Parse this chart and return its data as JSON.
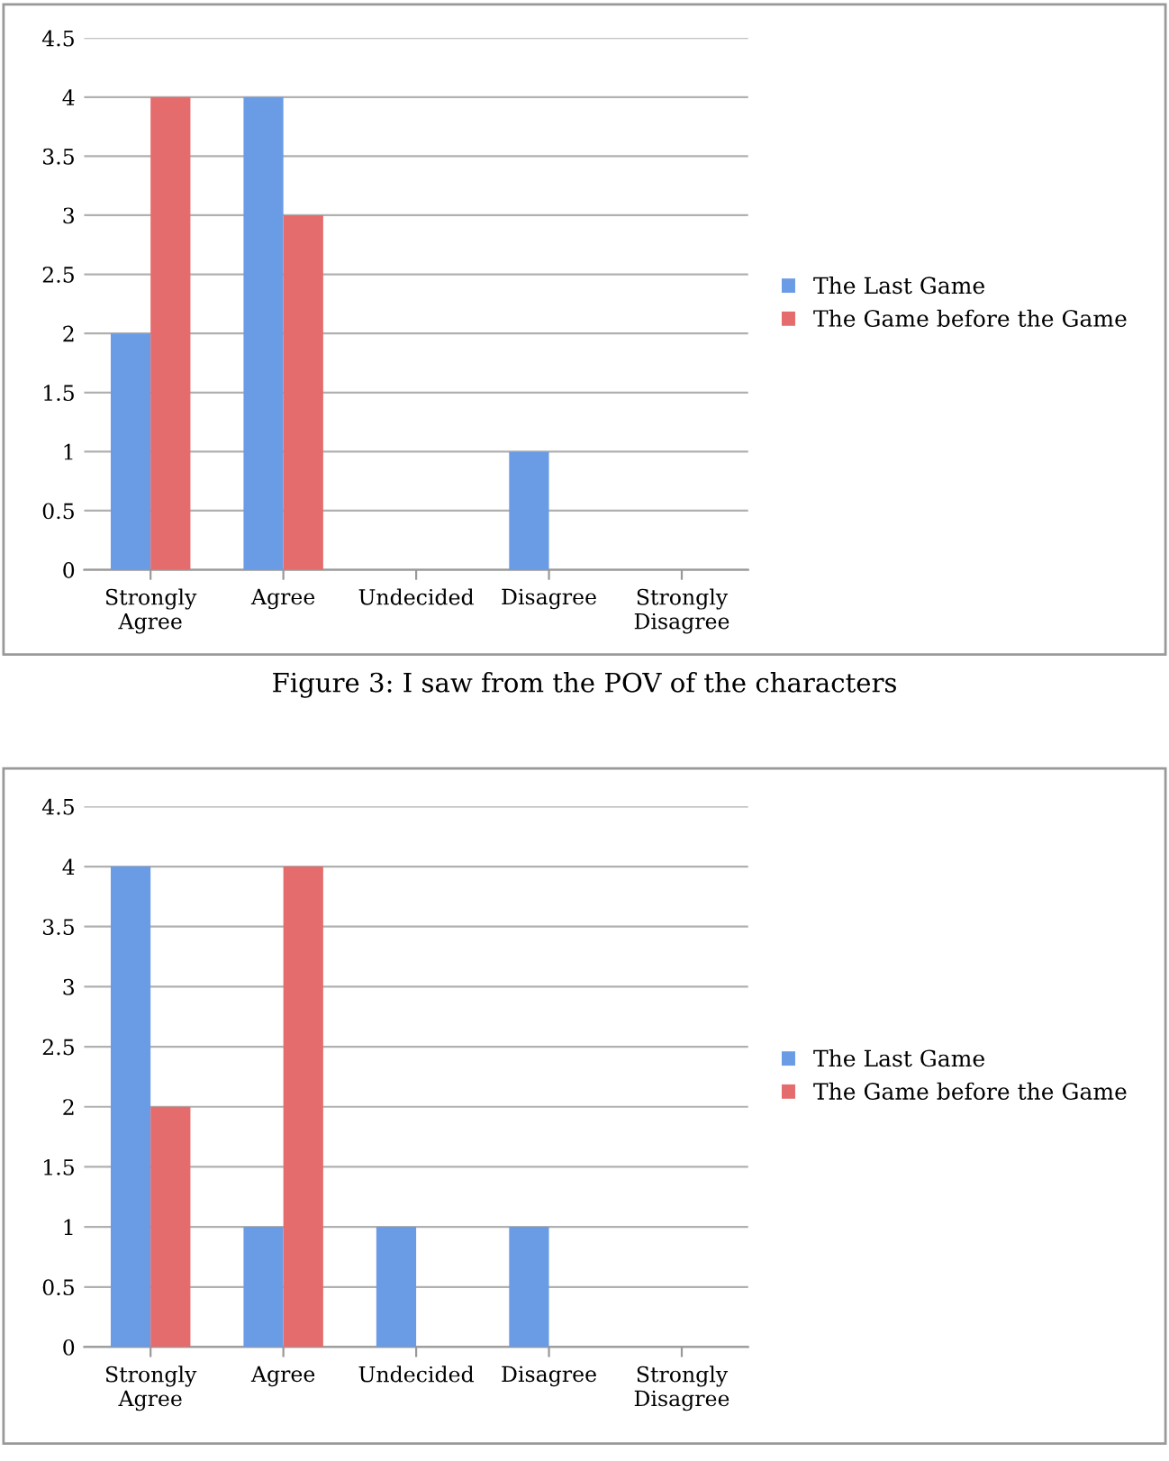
{
  "chart_data": [
    {
      "type": "bar",
      "categories": [
        "Strongly\nAgree",
        "Agree",
        "Undecided",
        "Disagree",
        "Strongly\nDisagree"
      ],
      "series": [
        {
          "name": "The Last Game",
          "color": "#6a9ce6",
          "values": [
            2,
            4,
            0,
            1,
            0
          ]
        },
        {
          "name": "The Game before the Game",
          "color": "#e46c6c",
          "values": [
            4,
            3,
            0,
            0,
            0
          ]
        }
      ],
      "ylim": [
        0,
        4.5
      ],
      "yticks": [
        0,
        0.5,
        1,
        1.5,
        2,
        2.5,
        3,
        3.5,
        4,
        4.5
      ],
      "grid": "y",
      "legend": "right",
      "annotations": [
        "Figure 3: I saw from the POV of the characters"
      ]
    },
    {
      "type": "bar",
      "categories": [
        "Strongly\nAgree",
        "Agree",
        "Undecided",
        "Disagree",
        "Strongly\nDisagree"
      ],
      "series": [
        {
          "name": "The Last Game",
          "color": "#6a9ce6",
          "values": [
            4,
            1,
            1,
            1,
            0
          ]
        },
        {
          "name": "The Game before the Game",
          "color": "#e46c6c",
          "values": [
            2,
            4,
            0,
            0,
            0
          ]
        }
      ],
      "ylim": [
        0,
        4.5
      ],
      "yticks": [
        0,
        0.5,
        1,
        1.5,
        2,
        2.5,
        3,
        3.5,
        4,
        4.5
      ],
      "grid": "y",
      "legend": "right"
    }
  ]
}
